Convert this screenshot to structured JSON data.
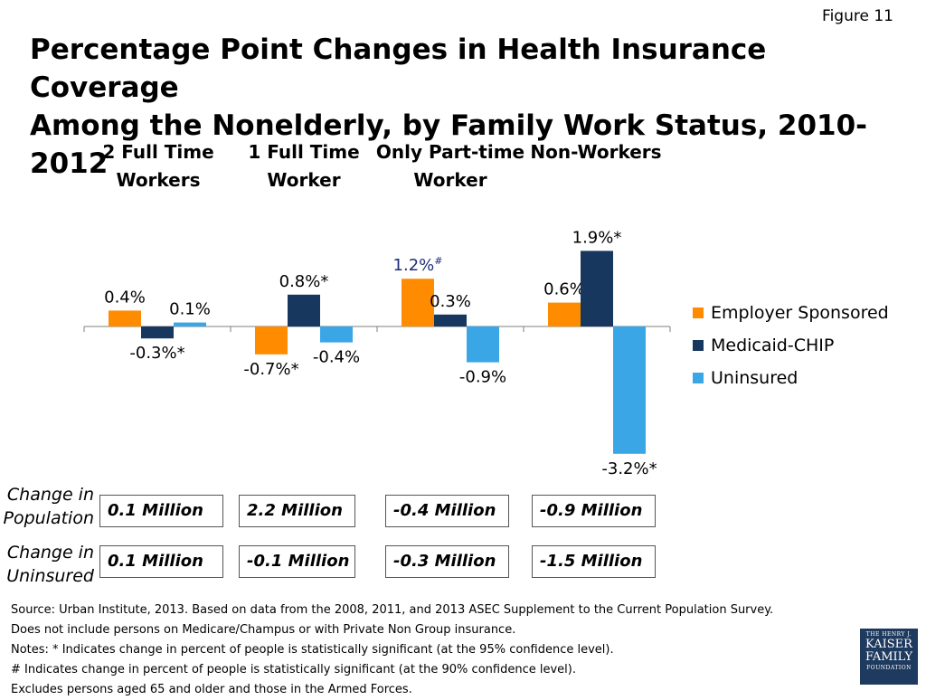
{
  "figure_label": "Figure 11",
  "title": {
    "line1": "Percentage Point Changes in Health Insurance Coverage",
    "line2": "Among the Nonelderly, by Family Work Status, 2010-2012"
  },
  "colors": {
    "employer": "#ff8c00",
    "medicaid": "#17375e",
    "uninsured": "#3aa6e6",
    "superscript": "#1f2e7a"
  },
  "chart_data": {
    "type": "bar",
    "title": "Percentage Point Changes in Health Insurance Coverage Among the Nonelderly, by Family Work Status, 2010-2012",
    "categories": [
      "2 Full Time Workers",
      "1 Full Time Worker",
      "Only Part-time Worker",
      "Non-Workers"
    ],
    "category_lines": [
      [
        "2 Full Time",
        "Workers"
      ],
      [
        "1 Full Time",
        "Worker"
      ],
      [
        "Only Part-time",
        "Worker"
      ],
      [
        "",
        "Non-Workers"
      ]
    ],
    "series": [
      {
        "name": "Employer Sponsored",
        "values": [
          0.4,
          -0.7,
          1.2,
          0.6
        ],
        "labels": [
          "0.4%",
          "-0.7%*",
          "1.2%",
          "0.6%"
        ]
      },
      {
        "name": "Medicaid-CHIP",
        "values": [
          -0.3,
          0.8,
          0.3,
          1.9
        ],
        "labels": [
          "-0.3%*",
          "0.8%*",
          "0.3%",
          "1.9%*"
        ]
      },
      {
        "name": "Uninsured",
        "values": [
          0.1,
          -0.4,
          -0.9,
          -3.2
        ],
        "labels": [
          "0.1%",
          "-0.4%",
          "-0.9%",
          "-3.2%*"
        ]
      }
    ],
    "label_superscripts": [
      [
        "",
        "",
        "#",
        ""
      ],
      [
        "",
        "",
        "",
        ""
      ],
      [
        "",
        "",
        "",
        ""
      ]
    ],
    "legend_position": "right",
    "grid": false,
    "ylim": [
      -3.2,
      1.9
    ]
  },
  "summary": {
    "population_label": [
      "Change in",
      "Population"
    ],
    "uninsured_label": [
      "Change in",
      "Uninsured"
    ],
    "population": [
      "0.1 Million",
      "2.2 Million",
      "-0.4 Million",
      "-0.9 Million"
    ],
    "uninsured": [
      "0.1 Million",
      "-0.1 Million",
      "-0.3 Million",
      "-1.5 Million"
    ]
  },
  "notes": [
    "Source: Urban Institute, 2013. Based on data from the 2008, 2011, and 2013 ASEC Supplement to the Current Population Survey.",
    "Does not include persons on Medicare/Champus or with Private Non Group insurance.",
    "Notes: * Indicates change in percent of people is statistically significant (at the 95% confidence level).",
    "# Indicates change in percent of people is statistically significant (at the 90% confidence level).",
    "Excludes persons aged 65 and older and those in the Armed Forces."
  ],
  "logo": {
    "line1": "THE HENRY J.",
    "line2": "KAISER",
    "line3": "FAMILY",
    "line4": "FOUNDATION"
  }
}
